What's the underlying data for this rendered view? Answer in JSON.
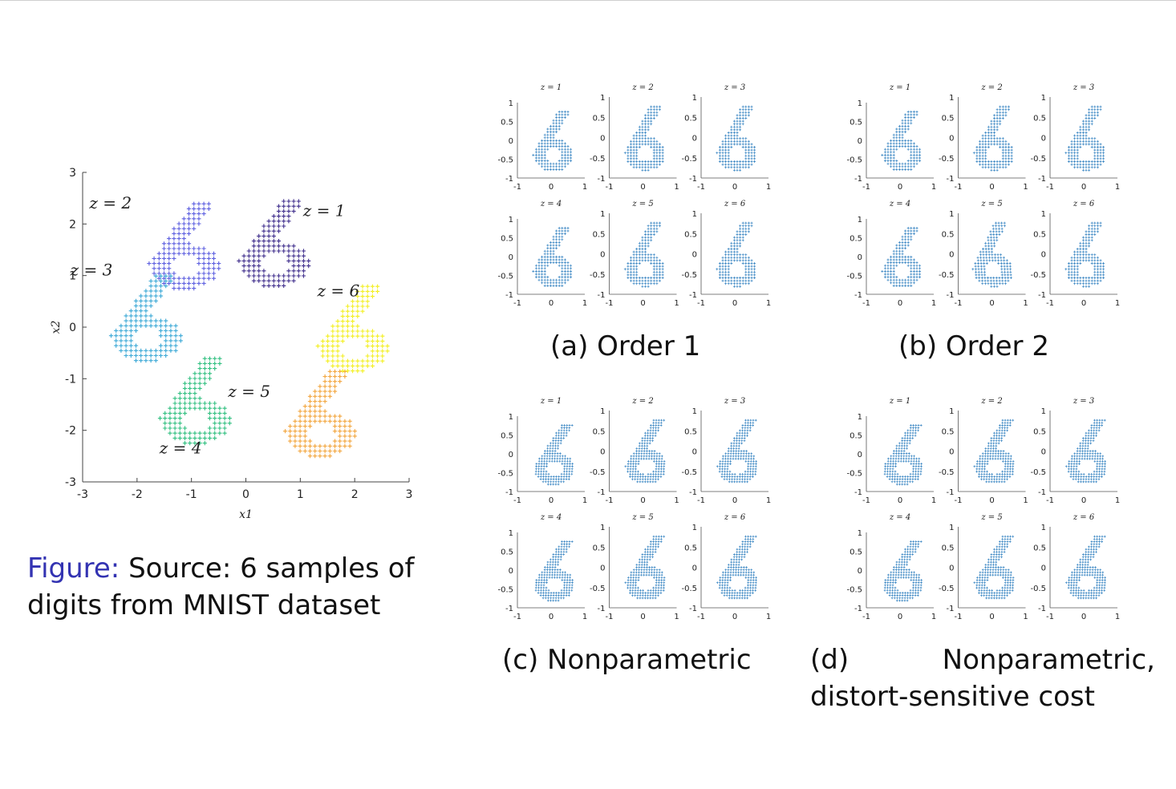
{
  "chart_data": [
    {
      "type": "scatter",
      "xlabel": "x1",
      "ylabel": "x2",
      "xlim": [
        -3,
        3
      ],
      "ylim": [
        -3,
        3
      ],
      "xticks": [
        "-3",
        "-2",
        "-1",
        "0",
        "1",
        "2",
        "3"
      ],
      "yticks": [
        "3",
        "2",
        "1",
        "0",
        "-1",
        "-2",
        "-3"
      ],
      "marker": "+",
      "series": [
        {
          "name": "z = 1",
          "color": "#3f2d8c",
          "center": [
            0.45,
            1.6
          ]
        },
        {
          "name": "z = 2",
          "color": "#5d5fe0",
          "center": [
            -1.2,
            1.55
          ]
        },
        {
          "name": "z = 3",
          "color": "#3aa8d6",
          "center": [
            -1.9,
            0.15
          ]
        },
        {
          "name": "z = 4",
          "color": "#2fbf7f",
          "center": [
            -1.0,
            -1.45
          ]
        },
        {
          "name": "z = 5",
          "color": "#f2a43a",
          "center": [
            1.3,
            -1.7
          ]
        },
        {
          "name": "z = 6",
          "color": "#f3ef1e",
          "center": [
            1.9,
            -0.05
          ]
        }
      ]
    }
  ],
  "figure_caption": {
    "label": "Figure:",
    "text": " Source: 6 samples of digits from MNIST dataset"
  },
  "small_plot": {
    "yticks": [
      "1",
      "0.5",
      "0",
      "-0.5",
      "-1"
    ],
    "xticks": [
      "-1",
      "0",
      "1"
    ],
    "titles": [
      "z = 1",
      "z = 2",
      "z = 3",
      "z = 4",
      "z = 5",
      "z = 6"
    ],
    "color": "#2e7fbf"
  },
  "captions": {
    "a": "(a)  Order 1",
    "b": "(b)  Order 2",
    "c": "(c)  Nonparametric",
    "d": "(d)          Nonparametric, distort-sensitive cost"
  }
}
